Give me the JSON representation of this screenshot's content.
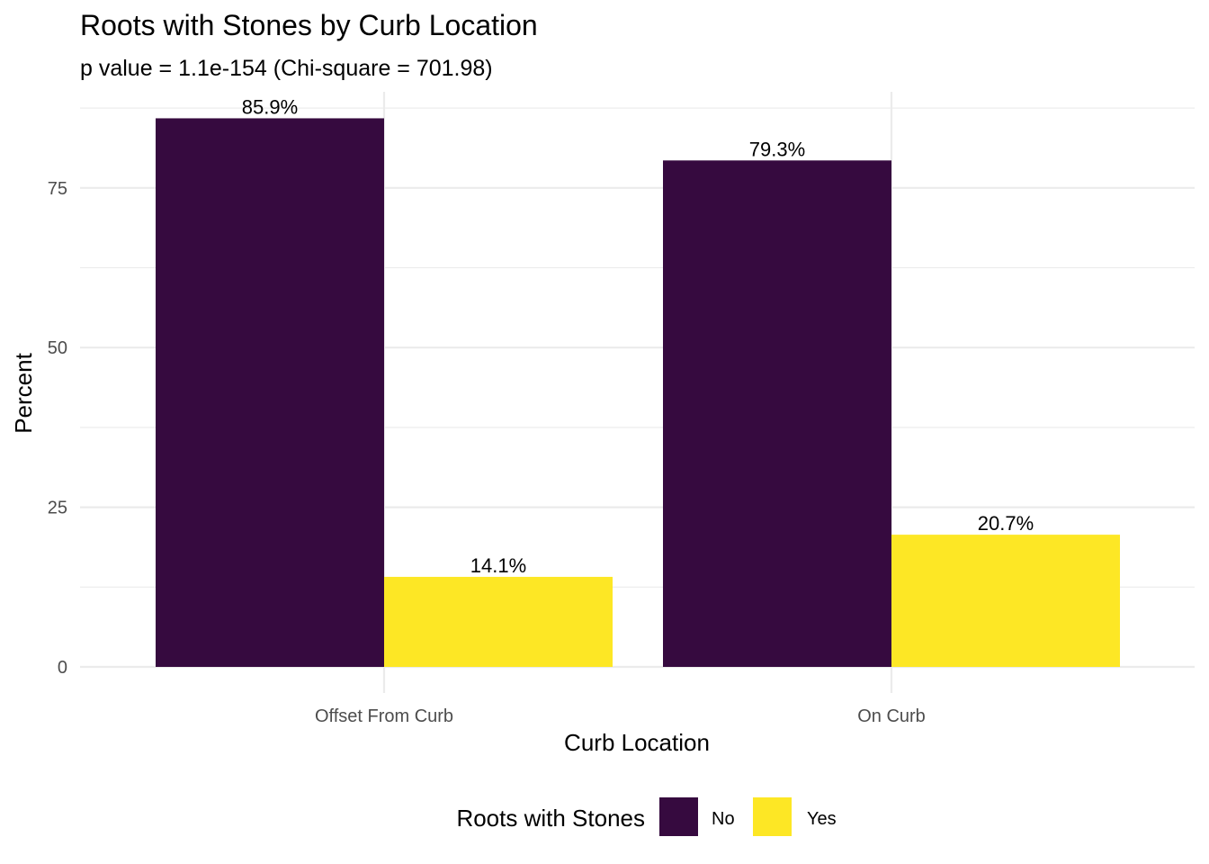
{
  "chart_data": {
    "type": "bar",
    "title": "Roots with Stones by Curb Location",
    "subtitle": "p value = 1.1e-154 (Chi-square = 701.98)",
    "xlabel": "Curb Location",
    "ylabel": "Percent",
    "categories": [
      "Offset From Curb",
      "On Curb"
    ],
    "series": [
      {
        "name": "No",
        "color": "#360a3f",
        "values": [
          85.9,
          79.3
        ],
        "labels": [
          "85.9%",
          "79.3%"
        ]
      },
      {
        "name": "Yes",
        "color": "#fde725",
        "values": [
          14.1,
          20.7
        ],
        "labels": [
          "14.1%",
          "20.7%"
        ]
      }
    ],
    "yticks": [
      0,
      25,
      50,
      75
    ],
    "ylim": [
      0,
      88.5
    ],
    "grid": true,
    "legend": {
      "title": "Roots with Stones",
      "position": "bottom"
    }
  }
}
